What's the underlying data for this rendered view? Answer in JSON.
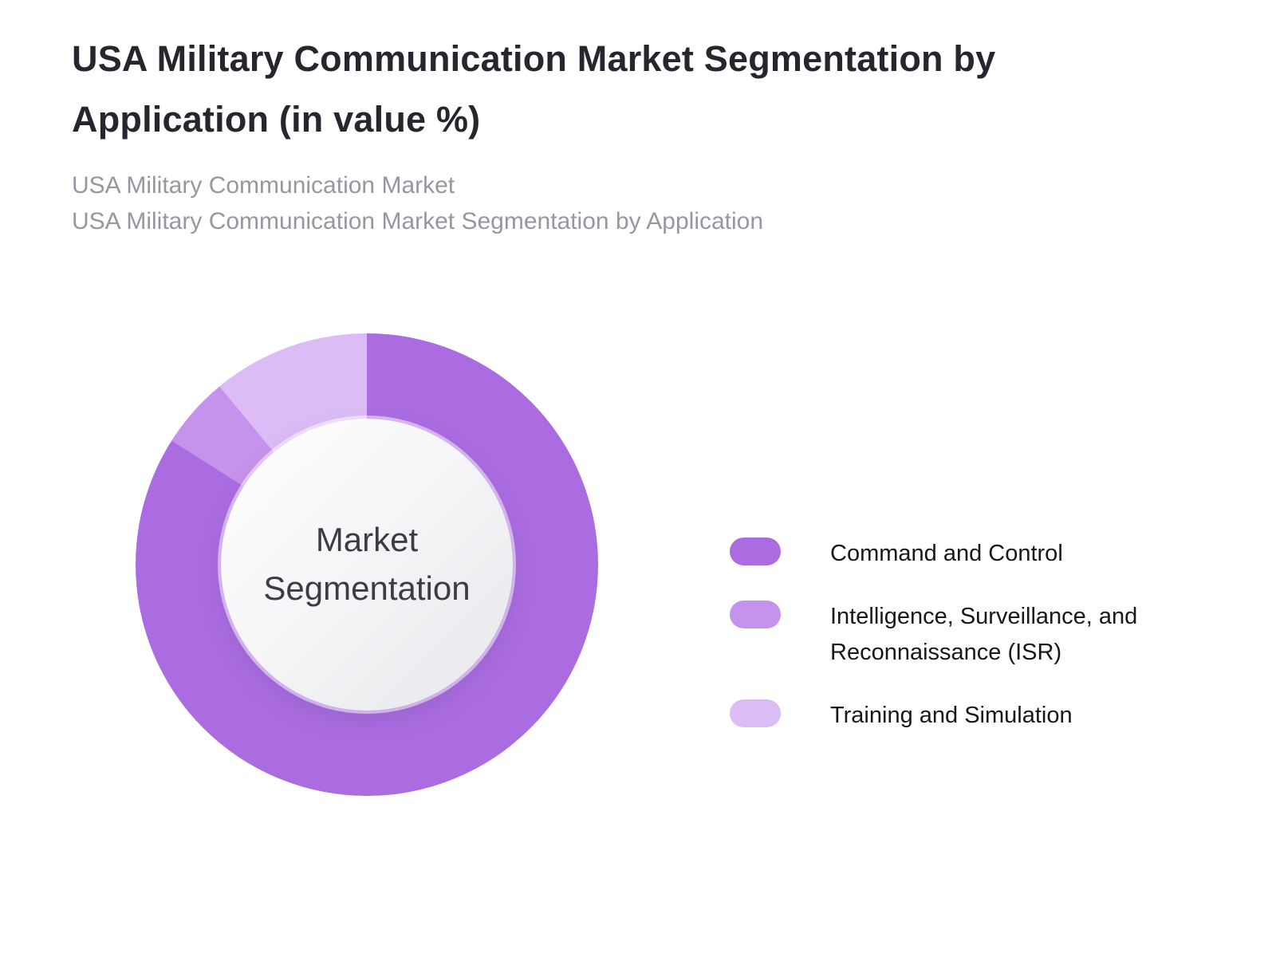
{
  "page": {
    "title": "USA Military Communication Market Segmentation by Application (in value %)",
    "subtitle_line1": "USA Military Communication Market",
    "subtitle_line2": "USA Military Communication Market Segmentation by Application"
  },
  "donut": {
    "center_line1": "Market",
    "center_line2": "Segmentation"
  },
  "chart_data": {
    "type": "pie",
    "donut": true,
    "title": "USA Military Communication Market Segmentation by Application (in value %)",
    "center_label": "Market Segmentation",
    "legend_position": "right",
    "start_angle_deg": 0,
    "direction": "clockwise",
    "series": [
      {
        "label": "Command and Control",
        "value": 84,
        "color": "#ab6ce1"
      },
      {
        "label": "Intelligence, Surveillance, and Reconnaissance (ISR)",
        "value": 5,
        "color": "#c693ec"
      },
      {
        "label": "Training and Simulation",
        "value": 11,
        "color": "#dcbcf5"
      }
    ]
  }
}
